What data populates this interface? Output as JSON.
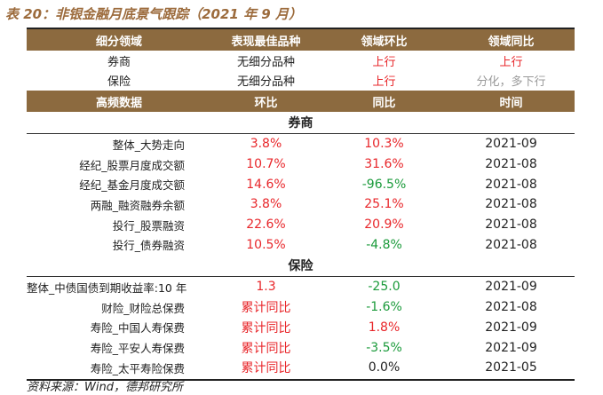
{
  "caption": "表 20：非银金融月底景气跟踪（2021 年 9 月）",
  "summary": {
    "headers": [
      "细分领域",
      "表现最佳品种",
      "领域环比",
      "领域同比"
    ],
    "rows": [
      {
        "domain": "券商",
        "best": "无细分品种",
        "mom": "上行",
        "yoy": "上行"
      },
      {
        "domain": "保险",
        "best": "无细分品种",
        "mom": "上行",
        "yoy": "分化，多下行"
      }
    ]
  },
  "detail": {
    "headers": [
      "高频数据",
      "环比",
      "同比",
      "时间"
    ],
    "sections": [
      {
        "title": "券商",
        "rows": [
          {
            "label": "整体_大势走向",
            "mom": "3.8%",
            "yoy": "10.3%",
            "time": "2021-09",
            "mom_color": "red",
            "yoy_color": "red"
          },
          {
            "label": "经纪_股票月度成交额",
            "mom": "10.7%",
            "yoy": "31.6%",
            "time": "2021-08",
            "mom_color": "red",
            "yoy_color": "red"
          },
          {
            "label": "经纪_基金月度成交额",
            "mom": "14.6%",
            "yoy": "-96.5%",
            "time": "2021-08",
            "mom_color": "red",
            "yoy_color": "green"
          },
          {
            "label": "两融_融资融券余额",
            "mom": "3.8%",
            "yoy": "25.1%",
            "time": "2021-08",
            "mom_color": "red",
            "yoy_color": "red"
          },
          {
            "label": "投行_股票融资",
            "mom": "22.6%",
            "yoy": "20.9%",
            "time": "2021-08",
            "mom_color": "red",
            "yoy_color": "red"
          },
          {
            "label": "投行_债券融资",
            "mom": "10.5%",
            "yoy": "-4.8%",
            "time": "2021-08",
            "mom_color": "red",
            "yoy_color": "green"
          }
        ]
      },
      {
        "title": "保险",
        "rows": [
          {
            "label": "整体_中债国债到期收益率:10 年",
            "mom": "1.3",
            "yoy": "-25.0",
            "time": "2021-09",
            "mom_color": "red",
            "yoy_color": "green"
          },
          {
            "label": "财险_财险总保费",
            "mom": "累计同比",
            "yoy": "-1.6%",
            "time": "2021-08",
            "mom_color": "red",
            "yoy_color": "green"
          },
          {
            "label": "寿险_中国人寿保费",
            "mom": "累计同比",
            "yoy": "1.8%",
            "time": "2021-09",
            "mom_color": "red",
            "yoy_color": "red"
          },
          {
            "label": "寿险_平安人寿保费",
            "mom": "累计同比",
            "yoy": "-3.5%",
            "time": "2021-09",
            "mom_color": "red",
            "yoy_color": "green"
          },
          {
            "label": "寿险_太平寿险保费",
            "mom": "累计同比",
            "yoy": "0.0%",
            "time": "2021-05",
            "mom_color": "red",
            "yoy_color": "black"
          }
        ]
      }
    ]
  },
  "colors": {
    "header_bg": "#8C6A3F",
    "caption": "#9C6B3C",
    "up": "#E8262A",
    "down": "#1A9A3A",
    "muted": "#9A9A9A"
  },
  "source": "资料来源：Wind，德邦研究所"
}
